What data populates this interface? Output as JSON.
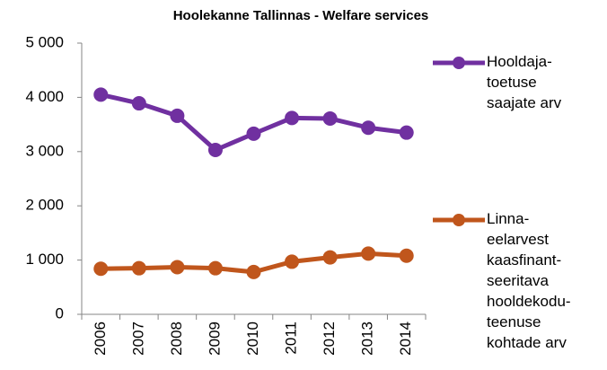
{
  "chart_data": {
    "type": "line",
    "title": "Hoolekanne Tallinnas - Welfare services",
    "categories": [
      "2006",
      "2007",
      "2008",
      "2009",
      "2010",
      "2011",
      "2012",
      "2013",
      "2014"
    ],
    "series": [
      {
        "name": "Hooldaja-\ntoetuse\nsaajate arv",
        "color": "#7030a0",
        "values": [
          4050,
          3890,
          3660,
          3030,
          3330,
          3620,
          3610,
          3440,
          3350
        ]
      },
      {
        "name": "Linna-\neelarvest\nkaasfinant-\nseeritava\nhooldekodu-\nteenuse\nkohtade arv",
        "color": "#c0561c",
        "values": [
          840,
          850,
          870,
          850,
          780,
          970,
          1050,
          1120,
          1080
        ]
      }
    ],
    "ylim": [
      0,
      5000
    ],
    "yticks": [
      0,
      {
        "value": 1000,
        "label": "1 000"
      },
      {
        "value": 2000,
        "label": "2 000"
      },
      {
        "value": 3000,
        "label": "3 000"
      },
      {
        "value": 4000,
        "label": "4 000"
      },
      {
        "value": 5000,
        "label": "5 000"
      }
    ],
    "grid": false,
    "legend": "right"
  }
}
